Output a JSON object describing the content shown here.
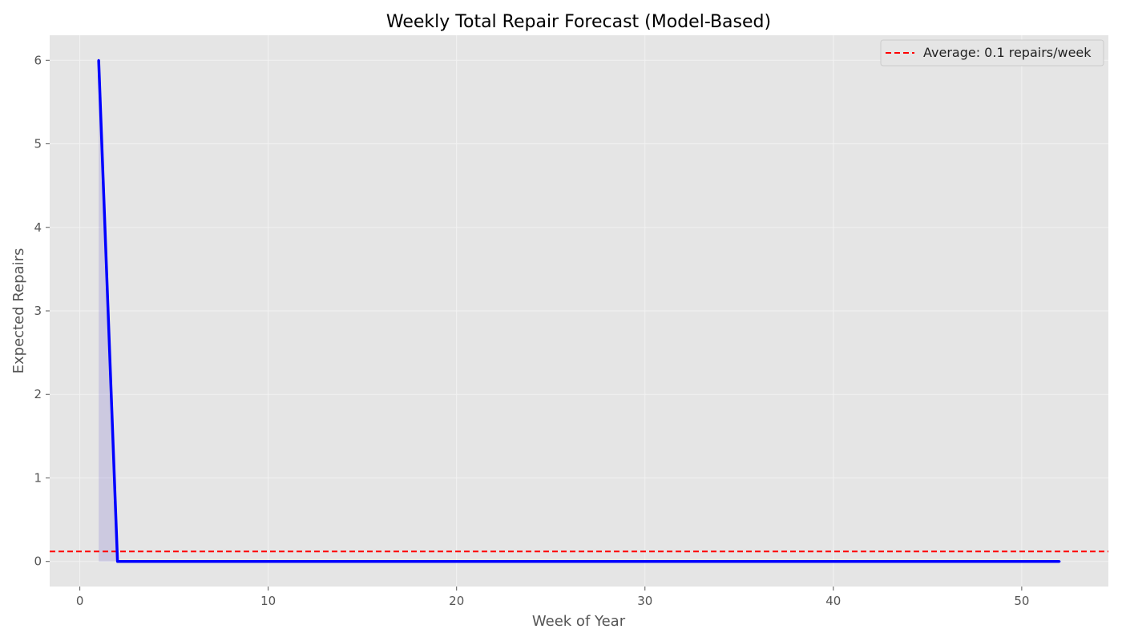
{
  "chart_data": {
    "type": "line",
    "title": "Weekly Total Repair Forecast (Model-Based)",
    "xlabel": "Week of Year",
    "ylabel": "Expected Repairs",
    "xlim": [
      -1.6,
      54.6
    ],
    "ylim": [
      -0.3,
      6.3
    ],
    "xticks": [
      0,
      10,
      20,
      30,
      40,
      50
    ],
    "yticks": [
      0,
      1,
      2,
      3,
      4,
      5,
      6
    ],
    "grid": true,
    "legend_position": "top-right",
    "series": [
      {
        "values": [
          {
            "x": 1,
            "y": 6
          },
          {
            "x": 2,
            "y": 0
          },
          {
            "x": 52,
            "y": 0
          }
        ],
        "color": "#0000ff",
        "fill": true,
        "fill_color": "#6a5acd"
      }
    ],
    "reference_lines": [
      {
        "name": "Average: 0.1 repairs/week",
        "y": 0.12,
        "color": "#ff0000",
        "style": "dashed"
      }
    ],
    "colors": {
      "plot_background": "#e5e5e5",
      "grid": "#f2f2f2"
    }
  }
}
